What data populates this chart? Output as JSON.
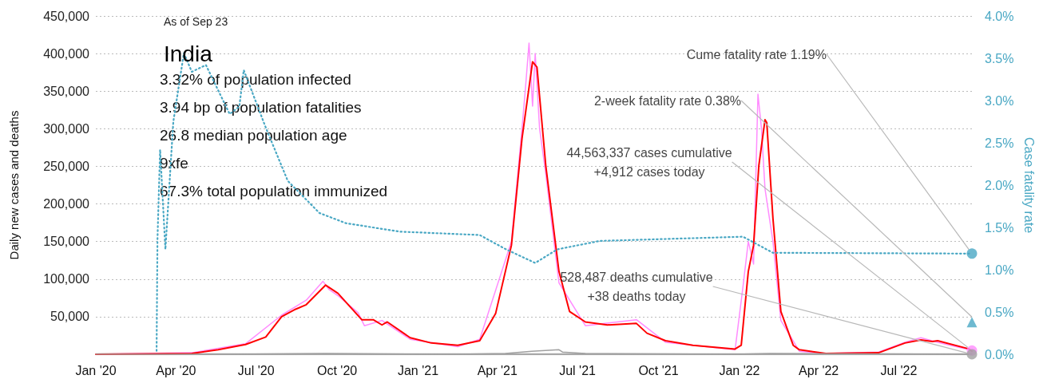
{
  "chart_data": {
    "type": "line",
    "title": "India",
    "subtitle": "As of Sep 23",
    "annotations": [
      "3.32% of population infected",
      "3.94 bp of population fatalities",
      "26.8 median population age",
      "9xfe",
      "67.3% total population immunized"
    ],
    "ylabel": "Daily new cases and deaths",
    "y2label": "Case fatality rate",
    "grid": "y",
    "xlim": [
      "2020-01-01",
      "2022-09-22"
    ],
    "xticks": [
      {
        "value": "2020-01-01",
        "label": "Jan '20"
      },
      {
        "value": "2020-04-01",
        "label": "Apr '20"
      },
      {
        "value": "2020-07-01",
        "label": "Jul '20"
      },
      {
        "value": "2020-10-01",
        "label": "Oct '20"
      },
      {
        "value": "2021-01-01",
        "label": "Jan '21"
      },
      {
        "value": "2021-04-01",
        "label": "Apr '21"
      },
      {
        "value": "2021-07-01",
        "label": "Jul '21"
      },
      {
        "value": "2021-10-01",
        "label": "Oct '21"
      },
      {
        "value": "2022-01-01",
        "label": "Jan '22"
      },
      {
        "value": "2022-04-01",
        "label": "Apr '22"
      },
      {
        "value": "2022-07-01",
        "label": "Jul '22"
      }
    ],
    "ylim": [
      0,
      450000
    ],
    "yticks": [
      {
        "value": 0,
        "label": null
      },
      {
        "value": 50000,
        "label": "50,000"
      },
      {
        "value": 100000,
        "label": "100,000"
      },
      {
        "value": 150000,
        "label": "150,000"
      },
      {
        "value": 200000,
        "label": "200,000"
      },
      {
        "value": 250000,
        "label": "250,000"
      },
      {
        "value": 300000,
        "label": "300,000"
      },
      {
        "value": 350000,
        "label": "350,000"
      },
      {
        "value": 400000,
        "label": "400,000"
      },
      {
        "value": 450000,
        "label": "450,000"
      }
    ],
    "y2lim": [
      0,
      4
    ],
    "y2ticks": [
      {
        "value": 0,
        "label": "0.0%"
      },
      {
        "value": 0.5,
        "label": "0.5%"
      },
      {
        "value": 1,
        "label": "1.0%"
      },
      {
        "value": 1.5,
        "label": "1.5%"
      },
      {
        "value": 2,
        "label": "2.0%"
      },
      {
        "value": 2.5,
        "label": "2.5%"
      },
      {
        "value": 3,
        "label": "3.0%"
      },
      {
        "value": 3.5,
        "label": "3.5%"
      },
      {
        "value": 4,
        "label": "4.0%"
      }
    ],
    "series": [
      {
        "color": "#ff8cff",
        "x": [
          "2020-01-01",
          "2020-04-19",
          "2020-06-19",
          "2020-07-30",
          "2020-08-27",
          "2020-09-15",
          "2020-09-22",
          "2020-10-02",
          "2020-10-25",
          "2020-11-01",
          "2020-11-21",
          "2020-12-23",
          "2021-02-15",
          "2021-03-12",
          "2021-04-17",
          "2021-04-29",
          "2021-05-03",
          "2021-05-07",
          "2021-05-11",
          "2021-05-14",
          "2021-05-19",
          "2021-05-26",
          "2021-06-10",
          "2021-07-10",
          "2021-09-06",
          "2021-10-09",
          "2021-12-27",
          "2022-01-05",
          "2022-01-11",
          "2022-01-17",
          "2022-01-22",
          "2022-01-26",
          "2022-01-30",
          "2022-02-08",
          "2022-02-17",
          "2022-03-10",
          "2022-04-09",
          "2022-06-08",
          "2022-07-08",
          "2022-07-26",
          "2022-08-14",
          "2022-09-19",
          "2022-09-22"
        ],
        "values": [
          0,
          2000,
          14000,
          52000,
          72000,
          97000,
          86000,
          78000,
          55000,
          38000,
          45000,
          20000,
          10000,
          20000,
          150000,
          300000,
          355000,
          414000,
          330000,
          400000,
          300000,
          240000,
          95000,
          38000,
          46000,
          16000,
          6000,
          90000,
          150000,
          120000,
          346000,
          300000,
          220000,
          150000,
          45000,
          4000,
          1000,
          3000,
          16000,
          22000,
          16000,
          6000,
          4912
        ]
      },
      {
        "color": "#ff0000",
        "x": [
          "2020-01-01",
          "2020-04-19",
          "2020-05-19",
          "2020-06-19",
          "2020-07-12",
          "2020-07-30",
          "2020-08-15",
          "2020-08-27",
          "2020-09-18",
          "2020-10-02",
          "2020-10-29",
          "2020-11-11",
          "2020-11-21",
          "2020-11-27",
          "2020-12-23",
          "2021-01-16",
          "2021-02-15",
          "2021-03-12",
          "2021-03-30",
          "2021-04-17",
          "2021-04-29",
          "2021-05-11",
          "2021-05-16",
          "2021-05-26",
          "2021-06-10",
          "2021-06-22",
          "2021-07-10",
          "2021-08-04",
          "2021-09-06",
          "2021-09-18",
          "2021-10-09",
          "2021-11-09",
          "2021-12-27",
          "2022-01-03",
          "2022-01-11",
          "2022-01-17",
          "2022-01-23",
          "2022-01-30",
          "2022-02-01",
          "2022-02-08",
          "2022-02-17",
          "2022-03-03",
          "2022-03-10",
          "2022-04-09",
          "2022-06-08",
          "2022-07-08",
          "2022-07-26",
          "2022-08-08",
          "2022-08-14",
          "2022-09-19",
          "2022-09-22"
        ],
        "values": [
          0,
          1000,
          6000,
          13000,
          23000,
          50000,
          60000,
          66000,
          92000,
          81000,
          46000,
          46000,
          39000,
          43000,
          22000,
          15000,
          12000,
          18000,
          54000,
          145000,
          287000,
          389000,
          382000,
          251000,
          110000,
          57000,
          43000,
          39000,
          41000,
          28000,
          18000,
          12000,
          7000,
          12000,
          110000,
          145000,
          251000,
          312000,
          308000,
          181000,
          57000,
          12000,
          6000,
          1000,
          2000,
          15000,
          19000,
          17000,
          18000,
          7000,
          4000
        ]
      },
      {
        "color": "#a0a0a0",
        "x": [
          "2020-01-01",
          "2020-06-01",
          "2020-09-18",
          "2021-02-15",
          "2021-04-10",
          "2021-05-10",
          "2021-06-10",
          "2021-06-14",
          "2021-07-10",
          "2021-12-27",
          "2022-02-05",
          "2022-09-22"
        ],
        "values": [
          0,
          0,
          1000,
          0,
          1000,
          4000,
          6000,
          3000,
          1000,
          0,
          1000,
          0
        ]
      },
      {
        "color": "#4aa8c4",
        "axis": "y2",
        "line_style": "dotted",
        "x": [
          "2020-03-10",
          "2020-03-11",
          "2020-03-14",
          "2020-03-20",
          "2020-03-29",
          "2020-04-10",
          "2020-04-19",
          "2020-05-05",
          "2020-06-01",
          "2020-06-12",
          "2020-06-17",
          "2020-07-12",
          "2020-08-06",
          "2020-09-11",
          "2020-10-11",
          "2020-12-11",
          "2021-03-12",
          "2021-04-11",
          "2021-05-14",
          "2021-06-08",
          "2021-07-26",
          "2022-01-05",
          "2022-02-08",
          "2022-09-22"
        ],
        "values": [
          0.04,
          1.36,
          2.42,
          1.24,
          2.75,
          3.56,
          3.34,
          3.42,
          2.84,
          2.93,
          3.36,
          2.68,
          2.05,
          1.67,
          1.55,
          1.45,
          1.41,
          1.24,
          1.08,
          1.24,
          1.34,
          1.39,
          1.2,
          1.19
        ]
      },
      {
        "type": "scatter",
        "name": "Cume fatality rate 1.19%",
        "marker": "circle",
        "axis": "y2",
        "color": "#4aa8c4",
        "x": [
          "2022-09-22"
        ],
        "values": [
          1.19
        ]
      },
      {
        "type": "scatter",
        "name": "2-week fatality rate 0.38%",
        "marker": "triangle",
        "axis": "y2",
        "color": "#4aa8c4",
        "x": [
          "2022-09-22"
        ],
        "values": [
          0.38
        ]
      },
      {
        "type": "scatter",
        "name": "44,563,337 cases cumulative\n+4,912 cases today",
        "marker": "circle",
        "color": "#ff8cff",
        "x": [
          "2022-09-22"
        ],
        "values": [
          4912
        ]
      },
      {
        "type": "scatter",
        "name": "528,487 deaths cumulative\n+38 deaths today",
        "marker": "circle",
        "color": "#a0a0a0",
        "x": [
          "2022-09-22"
        ],
        "values": [
          38
        ]
      }
    ]
  }
}
